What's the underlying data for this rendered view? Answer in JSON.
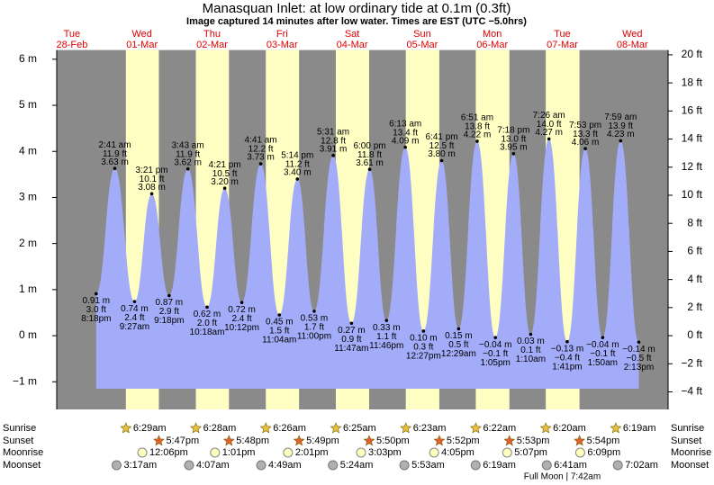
{
  "chart_data": {
    "type": "tide",
    "title": "Manasquan Inlet: at low  ordinary tide at 0.1m (0.3ft)",
    "subtitle": "Image captured 14 minutes after low water. Times are EST (UTC −5.0hrs)",
    "ylim": [
      -1.6,
      6.2
    ],
    "yticks": [
      {
        "value": -1,
        "label": "−1 m"
      },
      {
        "value": 0,
        "label": "0 m"
      },
      {
        "value": 1,
        "label": "1 m"
      },
      {
        "value": 2,
        "label": "2 m"
      },
      {
        "value": 3,
        "label": "3 m"
      },
      {
        "value": 4,
        "label": "4 m"
      },
      {
        "value": 5,
        "label": "5 m"
      },
      {
        "value": 6,
        "label": "6 m"
      }
    ],
    "y2lim": [
      -5.25,
      20.34
    ],
    "y2ticks": [
      {
        "value": -4,
        "label": "−4 ft"
      },
      {
        "value": -2,
        "label": "−2 ft"
      },
      {
        "value": 0,
        "label": "0 ft"
      },
      {
        "value": 2,
        "label": "2 ft"
      },
      {
        "value": 4,
        "label": "4 ft"
      },
      {
        "value": 6,
        "label": "6 ft"
      },
      {
        "value": 8,
        "label": "8 ft"
      },
      {
        "value": 10,
        "label": "10 ft"
      },
      {
        "value": 12,
        "label": "12 ft"
      },
      {
        "value": 14,
        "label": "14 ft"
      },
      {
        "value": 16,
        "label": "16 ft"
      },
      {
        "value": 18,
        "label": "18 ft"
      },
      {
        "value": 20,
        "label": "20 ft"
      }
    ],
    "row_labels": [
      "Sunrise",
      "Sunset",
      "Moonrise",
      "Moonset"
    ],
    "days": [
      {
        "weekday": "Tue",
        "date": "28-Feb",
        "tides": [
          {
            "time": "8:18pm",
            "m": 0.91,
            "m_label": "0.91 m",
            "ft": 3.0,
            "ft_label": "3.0 ft"
          }
        ]
      },
      {
        "weekday": "Wed",
        "date": "01-Mar",
        "sunrise": "6:29am",
        "sunset": "5:47pm",
        "moonrise": "12:06pm",
        "moonset": "3:17am",
        "tides": [
          {
            "time": "2:41 am",
            "m": 3.63,
            "m_label": "3.63 m",
            "ft": 11.9,
            "ft_label": "11.9 ft"
          },
          {
            "time": "9:27am",
            "m": 0.74,
            "m_label": "0.74 m",
            "ft": 2.4,
            "ft_label": "2.4 ft"
          },
          {
            "time": "3:21 pm",
            "m": 3.08,
            "m_label": "3.08 m",
            "ft": 10.1,
            "ft_label": "10.1 ft"
          },
          {
            "time": "9:18pm",
            "m": 0.87,
            "m_label": "0.87 m",
            "ft": 2.9,
            "ft_label": "2.9 ft"
          }
        ]
      },
      {
        "weekday": "Thu",
        "date": "02-Mar",
        "sunrise": "6:28am",
        "sunset": "5:48pm",
        "moonrise": "1:01pm",
        "moonset": "4:07am",
        "tides": [
          {
            "time": "3:43 am",
            "m": 3.62,
            "m_label": "3.62 m",
            "ft": 11.9,
            "ft_label": "11.9 ft"
          },
          {
            "time": "10:18am",
            "m": 0.62,
            "m_label": "0.62 m",
            "ft": 2.0,
            "ft_label": "2.0 ft"
          },
          {
            "time": "4:21 pm",
            "m": 3.2,
            "m_label": "3.20 m",
            "ft": 10.5,
            "ft_label": "10.5 ft"
          },
          {
            "time": "10:12pm",
            "m": 0.72,
            "m_label": "0.72 m",
            "ft": 2.4,
            "ft_label": "2.4 ft"
          }
        ]
      },
      {
        "weekday": "Fri",
        "date": "03-Mar",
        "sunrise": "6:26am",
        "sunset": "5:49pm",
        "moonrise": "2:01pm",
        "moonset": "4:49am",
        "tides": [
          {
            "time": "4:41 am",
            "m": 3.73,
            "m_label": "3.73 m",
            "ft": 12.2,
            "ft_label": "12.2 ft"
          },
          {
            "time": "11:04am",
            "m": 0.45,
            "m_label": "0.45 m",
            "ft": 1.5,
            "ft_label": "1.5 ft"
          },
          {
            "time": "5:14 pm",
            "m": 3.4,
            "m_label": "3.40 m",
            "ft": 11.2,
            "ft_label": "11.2 ft"
          },
          {
            "time": "11:00pm",
            "m": 0.53,
            "m_label": "0.53 m",
            "ft": 1.7,
            "ft_label": "1.7 ft"
          }
        ]
      },
      {
        "weekday": "Sat",
        "date": "04-Mar",
        "sunrise": "6:25am",
        "sunset": "5:50pm",
        "moonrise": "3:03pm",
        "moonset": "5:24am",
        "tides": [
          {
            "time": "5:31 am",
            "m": 3.91,
            "m_label": "3.91 m",
            "ft": 12.8,
            "ft_label": "12.8 ft"
          },
          {
            "time": "11:47am",
            "m": 0.27,
            "m_label": "0.27 m",
            "ft": 0.9,
            "ft_label": "0.9 ft"
          },
          {
            "time": "6:00 pm",
            "m": 3.61,
            "m_label": "3.61 m",
            "ft": 11.8,
            "ft_label": "11.8 ft"
          },
          {
            "time": "11:46pm",
            "m": 0.33,
            "m_label": "0.33 m",
            "ft": 1.1,
            "ft_label": "1.1 ft"
          }
        ]
      },
      {
        "weekday": "Sun",
        "date": "05-Mar",
        "sunrise": "6:23am",
        "sunset": "5:52pm",
        "moonrise": "4:05pm",
        "moonset": "5:53am",
        "tides": [
          {
            "time": "6:13 am",
            "m": 4.09,
            "m_label": "4.09 m",
            "ft": 13.4,
            "ft_label": "13.4 ft"
          },
          {
            "time": "12:27pm",
            "m": 0.1,
            "m_label": "0.10 m",
            "ft": 0.3,
            "ft_label": "0.3 ft"
          },
          {
            "time": "6:41 pm",
            "m": 3.8,
            "m_label": "3.80 m",
            "ft": 12.5,
            "ft_label": "12.5 ft"
          }
        ]
      },
      {
        "weekday": "Mon",
        "date": "06-Mar",
        "sunrise": "6:22am",
        "sunset": "5:53pm",
        "moonrise": "5:07pm",
        "moonset": "6:19am",
        "tides": [
          {
            "time": "12:29am",
            "m": 0.15,
            "m_label": "0.15 m",
            "ft": 0.5,
            "ft_label": "0.5 ft"
          },
          {
            "time": "6:51 am",
            "m": 4.22,
            "m_label": "4.22 m",
            "ft": 13.8,
            "ft_label": "13.8 ft"
          },
          {
            "time": "1:05pm",
            "m": -0.04,
            "m_label": "−0.04 m",
            "ft": -0.1,
            "ft_label": "−0.1 ft"
          },
          {
            "time": "7:18 pm",
            "m": 3.95,
            "m_label": "3.95 m",
            "ft": 13.0,
            "ft_label": "13.0 ft"
          }
        ]
      },
      {
        "weekday": "Tue",
        "date": "07-Mar",
        "sunrise": "6:20am",
        "sunset": "5:54pm",
        "moonrise": "6:09pm",
        "moonset": "6:41am",
        "full_moon": "Full Moon | 7:42am",
        "tides": [
          {
            "time": "1:10am",
            "m": 0.03,
            "m_label": "0.03 m",
            "ft": 0.1,
            "ft_label": "0.1 ft"
          },
          {
            "time": "7:26 am",
            "m": 4.27,
            "m_label": "4.27 m",
            "ft": 14.0,
            "ft_label": "14.0 ft"
          },
          {
            "time": "1:41pm",
            "m": -0.13,
            "m_label": "−0.13 m",
            "ft": -0.4,
            "ft_label": "−0.4 ft"
          },
          {
            "time": "7:53 pm",
            "m": 4.06,
            "m_label": "4.06 m",
            "ft": 13.3,
            "ft_label": "13.3 ft"
          }
        ]
      },
      {
        "weekday": "Wed",
        "date": "08-Mar",
        "sunrise": "6:19am",
        "moonset": "7:02am",
        "tides": [
          {
            "time": "1:50am",
            "m": -0.04,
            "m_label": "−0.04 m",
            "ft": -0.1,
            "ft_label": "−0.1 ft"
          },
          {
            "time": "7:59 am",
            "m": 4.23,
            "m_label": "4.23 m",
            "ft": 13.9,
            "ft_label": "13.9 ft"
          },
          {
            "time": "2:13pm",
            "m": -0.14,
            "m_label": "−0.14 m",
            "ft": -0.5,
            "ft_label": "−0.5 ft"
          }
        ]
      }
    ]
  }
}
